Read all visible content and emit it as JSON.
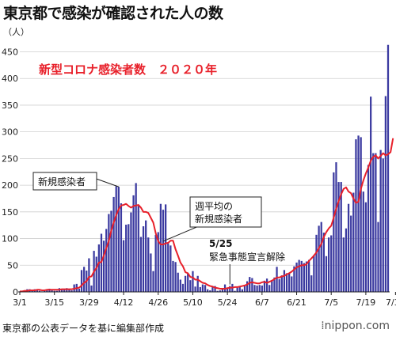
{
  "header": {
    "title": "東京都で感染が確認された人の数"
  },
  "footer": {
    "source": "東京都の公表データを基に編集部作成",
    "brand": "nippon.com"
  },
  "colors": {
    "bar": "#3b3aa0",
    "line": "#e8202a",
    "title_red": "#e8202a",
    "grid": "#cfcfcf",
    "axis": "#222222"
  },
  "chart_data": {
    "type": "bar",
    "title": "新型コロナ感染者数　２０２０年",
    "ylabel": "（人）",
    "ylim": [
      0,
      470
    ],
    "yticks": [
      0,
      50,
      100,
      150,
      200,
      250,
      300,
      350,
      400,
      450
    ],
    "grid": true,
    "x_start": "3/1",
    "xtick_labels": [
      {
        "day": 0,
        "label": "3/1"
      },
      {
        "day": 14,
        "label": "3/15"
      },
      {
        "day": 28,
        "label": "3/29"
      },
      {
        "day": 42,
        "label": "4/12"
      },
      {
        "day": 56,
        "label": "4/26"
      },
      {
        "day": 70,
        "label": "5/10"
      },
      {
        "day": 84,
        "label": "5/24"
      },
      {
        "day": 98,
        "label": "6/7"
      },
      {
        "day": 112,
        "label": "6/21"
      },
      {
        "day": 126,
        "label": "7/5"
      },
      {
        "day": 140,
        "label": "7/19"
      },
      {
        "day": 152,
        "label": "7/31"
      }
    ],
    "series": [
      {
        "name": "新規感染者",
        "type": "bar",
        "values": [
          1,
          0,
          3,
          5,
          5,
          4,
          5,
          3,
          2,
          1,
          4,
          5,
          6,
          4,
          2,
          2,
          7,
          5,
          5,
          7,
          4,
          3,
          14,
          15,
          6,
          41,
          47,
          40,
          63,
          12,
          77,
          66,
          89,
          109,
          96,
          118,
          146,
          152,
          178,
          198,
          197,
          166,
          97,
          126,
          127,
          149,
          181,
          204,
          161,
          103,
          123,
          134,
          102,
          72,
          39,
          107,
          112,
          165,
          154,
          164,
          91,
          87,
          58,
          56,
          36,
          23,
          15,
          30,
          35,
          22,
          39,
          10,
          30,
          9,
          14,
          13,
          5,
          3,
          9,
          11,
          2,
          3,
          5,
          14,
          8,
          11,
          15,
          2,
          8,
          10,
          5,
          12,
          20,
          28,
          26,
          13,
          12,
          13,
          12,
          21,
          25,
          13,
          22,
          27,
          47,
          24,
          31,
          41,
          35,
          35,
          29,
          48,
          55,
          60,
          58,
          54,
          57,
          60,
          31,
          69,
          107,
          124,
          131,
          111,
          67,
          102,
          106,
          224,
          243,
          206,
          206,
          102,
          119,
          165,
          143,
          186,
          286,
          293,
          290,
          188,
          168,
          238,
          366,
          260,
          260,
          131,
          266,
          250,
          367,
          463
        ],
        "line_color": "#3b3aa0"
      },
      {
        "name": "週平均の新規感染者",
        "type": "line",
        "values": [
          1,
          1,
          2,
          2,
          3,
          3,
          3,
          4,
          4,
          3,
          3,
          4,
          4,
          4,
          4,
          4,
          4,
          5,
          5,
          5,
          5,
          5,
          6,
          7,
          8,
          12,
          17,
          20,
          28,
          29,
          38,
          45,
          55,
          56,
          68,
          82,
          95,
          115,
          130,
          144,
          155,
          162,
          163,
          165,
          161,
          158,
          161,
          162,
          163,
          158,
          150,
          150,
          148,
          139,
          130,
          110,
          95,
          89,
          89,
          91,
          92,
          96,
          96,
          80,
          68,
          55,
          48,
          37,
          35,
          28,
          27,
          23,
          23,
          20,
          17,
          16,
          13,
          11,
          10,
          8,
          7,
          6,
          6,
          6,
          7,
          8,
          8,
          9,
          9,
          10,
          11,
          12,
          14,
          17,
          18,
          17,
          16,
          16,
          18,
          19,
          17,
          19,
          21,
          24,
          27,
          27,
          29,
          30,
          33,
          35,
          38,
          42,
          46,
          48,
          50,
          50,
          52,
          58,
          63,
          68,
          74,
          82,
          90,
          103,
          112,
          119,
          124,
          139,
          156,
          170,
          183,
          193,
          196,
          188,
          185,
          175,
          167,
          169,
          193,
          209,
          222,
          233,
          246,
          253,
          256,
          250,
          255,
          260,
          256,
          258,
          262,
          288
        ]
      }
    ],
    "annotations": [
      {
        "text": "新規感染者",
        "target_day": 40,
        "target_value": 197,
        "style": "box"
      },
      {
        "text": "週平均の\n新規感染者",
        "target_day": 58,
        "target_value": 95,
        "style": "box"
      },
      {
        "text": "5/25\n緊急事態宣言解除",
        "target_day": 85,
        "target_value": 14,
        "style": "plain"
      }
    ]
  }
}
